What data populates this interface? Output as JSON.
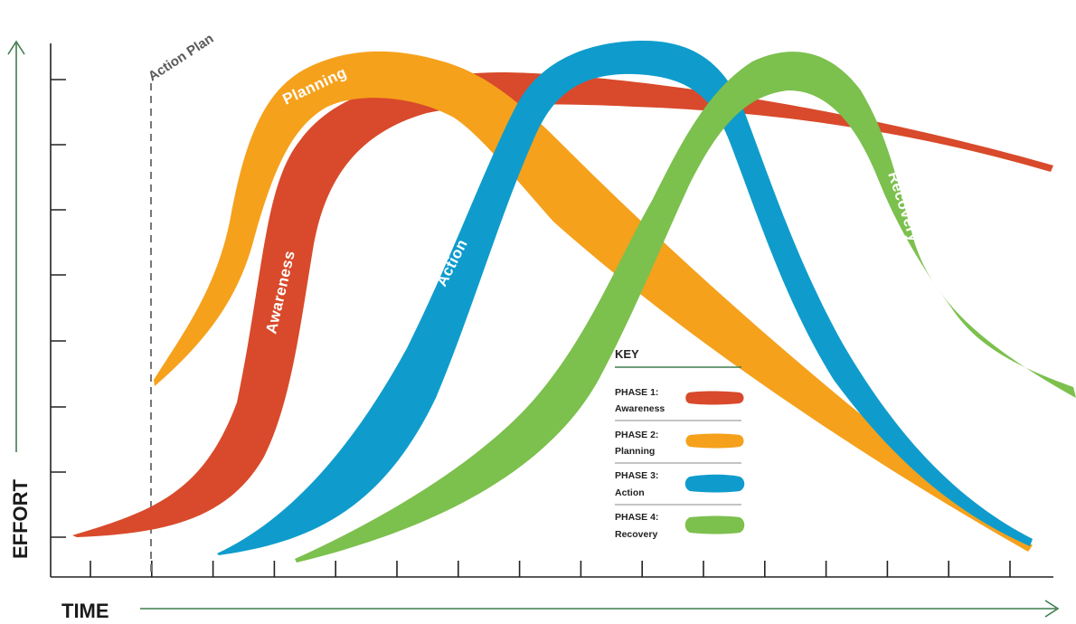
{
  "axes": {
    "y_label": "EFFORT",
    "x_label": "TIME",
    "arrow_color": "#3f7d4e",
    "axis_color": "#222222"
  },
  "marker": {
    "label": "Action Plan"
  },
  "phases": [
    {
      "label": "Awareness",
      "color": "#d84a2b"
    },
    {
      "label": "Planning",
      "color": "#f5a11c"
    },
    {
      "label": "Action",
      "color": "#0f9ccc"
    },
    {
      "label": "Recovery",
      "color": "#7cc04e"
    }
  ],
  "key": {
    "title": "KEY",
    "items": [
      {
        "phase": "PHASE 1:",
        "name": "Awareness",
        "color": "#d84a2b"
      },
      {
        "phase": "PHASE 2:",
        "name": "Planning",
        "color": "#f5a11c"
      },
      {
        "phase": "PHASE 3:",
        "name": "Action",
        "color": "#0f9ccc"
      },
      {
        "phase": "PHASE 4:",
        "name": "Recovery",
        "color": "#7cc04e"
      }
    ]
  }
}
